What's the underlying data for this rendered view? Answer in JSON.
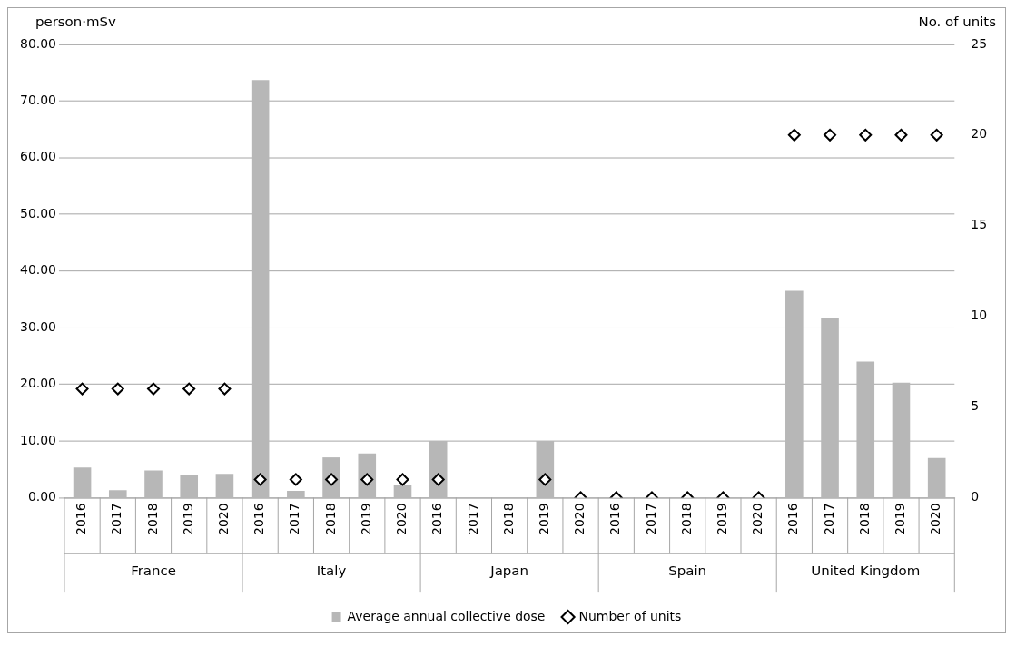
{
  "chart_data": {
    "type": "bar",
    "ylabel": "person·mSv",
    "y2label": "No. of units",
    "categories": [
      "2016",
      "2017",
      "2018",
      "2019",
      "2020",
      "2016",
      "2017",
      "2018",
      "2019",
      "2020",
      "2016",
      "2017",
      "2018",
      "2019",
      "2020",
      "2016",
      "2017",
      "2018",
      "2019",
      "2020",
      "2016",
      "2017",
      "2018",
      "2019",
      "2020"
    ],
    "annotations": [
      "France",
      "Italy",
      "Japan",
      "Spain",
      "United Kingdom"
    ],
    "series": [
      {
        "name": "Average annual collective dose",
        "color": "#b7b7b7",
        "values": [
          5.3,
          1.3,
          4.8,
          3.9,
          4.2,
          73.7,
          1.2,
          7.1,
          7.8,
          2.2,
          10.0,
          0,
          0,
          10.0,
          0,
          0,
          0,
          0,
          0,
          0,
          36.5,
          31.7,
          24.0,
          20.3,
          7.0
        ]
      },
      {
        "name": "Number of units",
        "type": "scatter",
        "axis": "y2",
        "color": "#000000",
        "marker": "diamond",
        "values": [
          6,
          6,
          6,
          6,
          6,
          1,
          1,
          1,
          1,
          1,
          1,
          null,
          null,
          1,
          0,
          0,
          0,
          0,
          0,
          0,
          20,
          20,
          20,
          20,
          20
        ]
      }
    ],
    "ylim": [
      0,
      80
    ],
    "yticks": [
      {
        "value": 0,
        "label": "0.00"
      },
      {
        "value": 10,
        "label": "10.00"
      },
      {
        "value": 20,
        "label": "20.00"
      },
      {
        "value": 30,
        "label": "30.00"
      },
      {
        "value": 40,
        "label": "40.00"
      },
      {
        "value": 50,
        "label": "50.00"
      },
      {
        "value": 60,
        "label": "60.00"
      },
      {
        "value": 70,
        "label": "70.00"
      },
      {
        "value": 80,
        "label": "80.00"
      }
    ],
    "y2lim": [
      0,
      25
    ],
    "y2ticks": [
      0,
      5,
      10,
      15,
      20,
      25
    ],
    "grid": "y",
    "legend": "bottom"
  }
}
